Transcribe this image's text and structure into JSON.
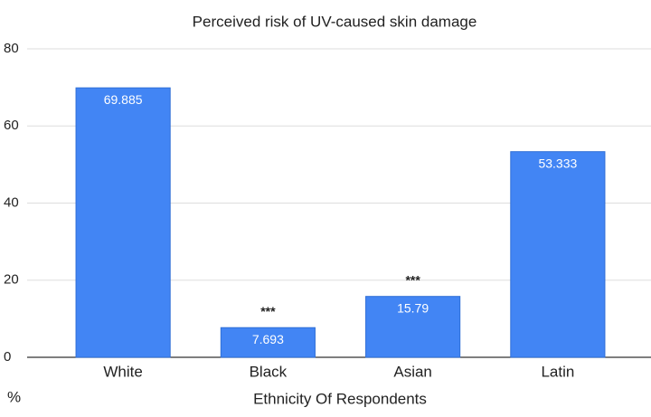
{
  "chart_data": {
    "type": "bar",
    "title": "Perceived risk of UV-caused skin damage",
    "categories": [
      "White",
      "Black",
      "Asian",
      "Latin"
    ],
    "values": [
      69.885,
      7.693,
      15.79,
      53.333
    ],
    "annotations": [
      null,
      "***",
      "***",
      null
    ],
    "color": "#4285f4",
    "x_label": "Ethnicity Of Respondents",
    "y_label": "%",
    "ylim": [
      0,
      80
    ],
    "yticks": [
      0,
      20,
      40,
      60,
      80
    ],
    "grid": true
  }
}
